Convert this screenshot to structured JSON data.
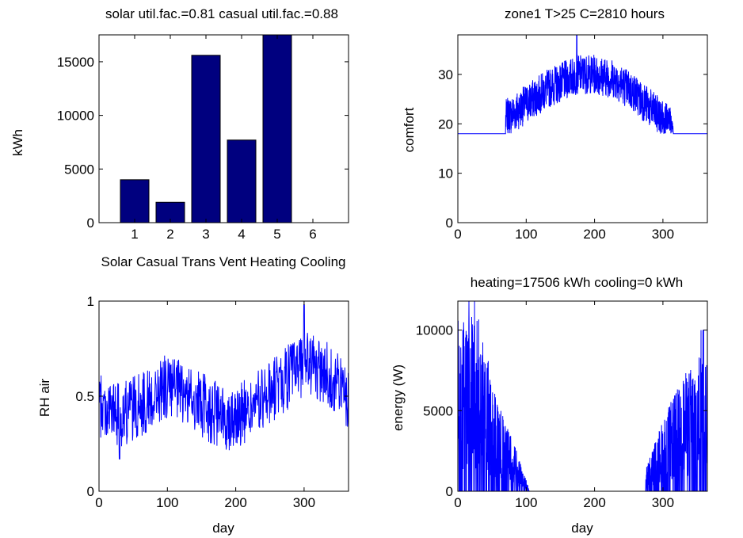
{
  "colors": {
    "bar_fill": "#00007f",
    "line": "#0000ff",
    "axes": "#000000"
  },
  "chart_data": [
    {
      "id": "energy-bars",
      "type": "bar",
      "title": "solar util.fac.=0.81   casual util.fac.=0.88",
      "xlabel": "Solar Casual Trans Vent Heating Cooling",
      "ylabel": "kWh",
      "categories": [
        "1",
        "2",
        "3",
        "4",
        "5",
        "6"
      ],
      "values": [
        4000,
        1900,
        15600,
        7700,
        17506,
        0
      ],
      "xlim": [
        0,
        7
      ],
      "ylim": [
        0,
        17506
      ],
      "yticks": [
        0,
        5000,
        10000,
        15000
      ],
      "grid": false
    },
    {
      "id": "comfort",
      "type": "line",
      "title": "zone1 T>25 C=2810 hours",
      "xlabel": "",
      "ylabel": "comfort",
      "xlim": [
        0,
        365
      ],
      "ylim": [
        0,
        38
      ],
      "xticks": [
        0,
        100,
        200,
        300
      ],
      "yticks": [
        0,
        10,
        20,
        30
      ],
      "baseline": 18,
      "active_range": [
        70,
        315
      ],
      "series": [
        {
          "envelope_x": [
            70,
            100,
            130,
            160,
            175,
            200,
            230,
            260,
            290,
            315
          ],
          "envelope_y": [
            21,
            24,
            27,
            29,
            30,
            30,
            29,
            26,
            22,
            19
          ]
        }
      ],
      "grid": false
    },
    {
      "id": "rh-air",
      "type": "line",
      "title": "",
      "xlabel": "day",
      "ylabel": "RH air",
      "xlim": [
        0,
        365
      ],
      "ylim": [
        0,
        1
      ],
      "xticks": [
        0,
        100,
        200,
        300
      ],
      "yticks": [
        0,
        0.5,
        1
      ],
      "series": [
        {
          "envelope_x": [
            0,
            30,
            60,
            100,
            140,
            180,
            220,
            260,
            300,
            340,
            365
          ],
          "envelope_y": [
            0.45,
            0.4,
            0.45,
            0.55,
            0.48,
            0.38,
            0.42,
            0.55,
            0.68,
            0.6,
            0.5
          ]
        }
      ],
      "grid": false
    },
    {
      "id": "energy",
      "type": "line",
      "title": "heating=17506 kWh      cooling=0 kWh",
      "xlabel": "day",
      "ylabel": "energy (W)",
      "xlim": [
        0,
        365
      ],
      "ylim": [
        0,
        11800
      ],
      "xticks": [
        0,
        100,
        200,
        300
      ],
      "yticks": [
        0,
        5000,
        10000
      ],
      "active_range": [
        [
          0,
          105
        ],
        [
          275,
          365
        ]
      ],
      "series": [
        {
          "envelope_x": [
            0,
            30,
            60,
            90,
            105,
            275,
            300,
            330,
            365
          ],
          "envelope_y": [
            6500,
            6000,
            3000,
            1200,
            0,
            800,
            2500,
            4000,
            5000
          ]
        }
      ],
      "grid": false
    }
  ]
}
